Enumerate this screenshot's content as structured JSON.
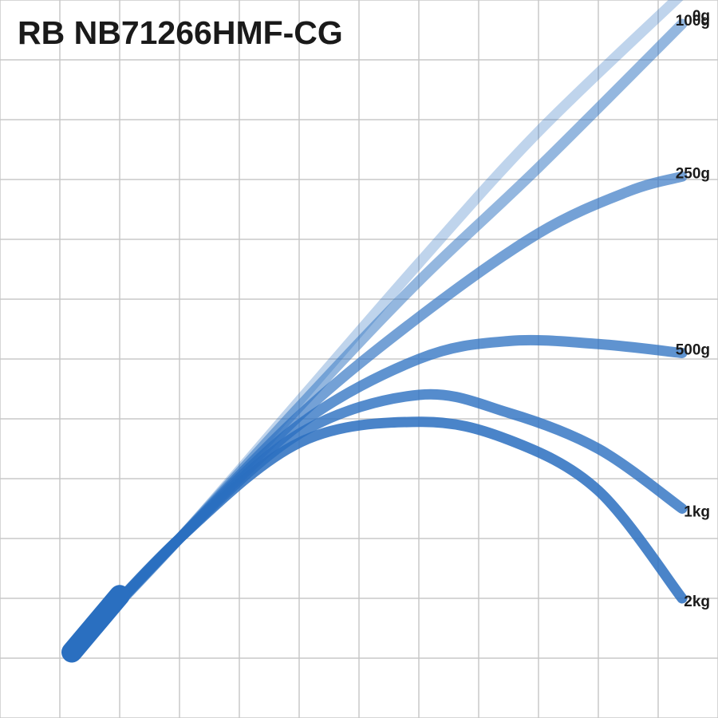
{
  "title": "RB NB71266HMF-CG",
  "colors": {
    "curve": "#2a6fc0",
    "grid": "#c8c8c8",
    "background": "#ffffff",
    "text": "#1a1a1a"
  },
  "chart_data": {
    "type": "line",
    "title": "RB NB71266HMF-CG",
    "xlabel": "",
    "ylabel": "",
    "grid": true,
    "grid_divisions": {
      "x": 12,
      "y": 12
    },
    "xlim": [
      0,
      12
    ],
    "ylim": [
      0,
      12
    ],
    "series": [
      {
        "name": "0g",
        "opacity": 0.3,
        "points": [
          [
            0.2,
            0.1
          ],
          [
            2.0,
            2.0
          ],
          [
            4.0,
            4.3
          ],
          [
            6.0,
            6.6
          ],
          [
            8.0,
            8.8
          ],
          [
            10.4,
            11.1
          ]
        ]
      },
      {
        "name": "100g",
        "opacity": 0.5,
        "points": [
          [
            0.2,
            0.1
          ],
          [
            2.0,
            2.0
          ],
          [
            4.0,
            4.2
          ],
          [
            6.0,
            6.3
          ],
          [
            8.0,
            8.2
          ],
          [
            10.4,
            10.6
          ]
        ]
      },
      {
        "name": "250g",
        "opacity": 0.65,
        "points": [
          [
            0.2,
            0.1
          ],
          [
            2.0,
            2.0
          ],
          [
            4.0,
            4.05
          ],
          [
            6.0,
            5.7
          ],
          [
            8.0,
            7.1
          ],
          [
            9.5,
            7.8
          ],
          [
            10.4,
            8.05
          ]
        ]
      },
      {
        "name": "500g",
        "opacity": 0.75,
        "points": [
          [
            0.2,
            0.1
          ],
          [
            2.0,
            2.0
          ],
          [
            4.0,
            3.9
          ],
          [
            6.0,
            5.0
          ],
          [
            7.5,
            5.3
          ],
          [
            9.0,
            5.25
          ],
          [
            10.4,
            5.1
          ]
        ]
      },
      {
        "name": "1kg",
        "opacity": 0.8,
        "points": [
          [
            0.2,
            0.1
          ],
          [
            2.0,
            2.0
          ],
          [
            4.0,
            3.75
          ],
          [
            6.0,
            4.4
          ],
          [
            7.5,
            4.1
          ],
          [
            9.0,
            3.5
          ],
          [
            10.4,
            2.5
          ]
        ]
      },
      {
        "name": "2kg",
        "opacity": 0.85,
        "points": [
          [
            0.2,
            0.1
          ],
          [
            2.0,
            2.0
          ],
          [
            4.0,
            3.6
          ],
          [
            6.0,
            3.95
          ],
          [
            7.5,
            3.65
          ],
          [
            9.0,
            2.8
          ],
          [
            10.4,
            1.0
          ]
        ]
      }
    ]
  }
}
